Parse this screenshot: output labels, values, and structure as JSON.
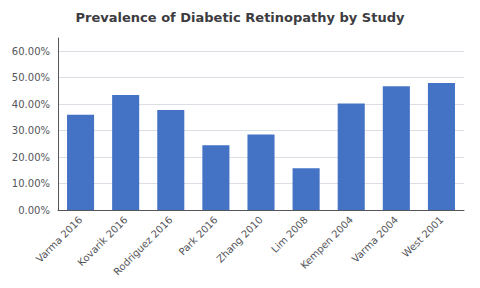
{
  "chart_data": {
    "type": "bar",
    "title": "Prevalence of Diabetic Retinopathy by Study",
    "categories": [
      "Varma 2016",
      "Kovarik 2016",
      "Rodriguez 2016",
      "Park 2016",
      "Zhang 2010",
      "Lim 2008",
      "Kempen 2004",
      "Varma 2004",
      "West 2001"
    ],
    "values": [
      0.36,
      0.435,
      0.378,
      0.245,
      0.285,
      0.158,
      0.402,
      0.468,
      0.48
    ],
    "color": "#4472C4",
    "ylim": [
      0,
      0.65
    ],
    "yticks": [
      {
        "value": 0.0,
        "label": "0.00%"
      },
      {
        "value": 0.1,
        "label": "10.00%"
      },
      {
        "value": 0.2,
        "label": "20.00%"
      },
      {
        "value": 0.3,
        "label": "30.00%"
      },
      {
        "value": 0.4,
        "label": "40.00%"
      },
      {
        "value": 0.5,
        "label": "50.00%"
      },
      {
        "value": 0.6,
        "label": "60.00%"
      }
    ],
    "grid": true
  }
}
